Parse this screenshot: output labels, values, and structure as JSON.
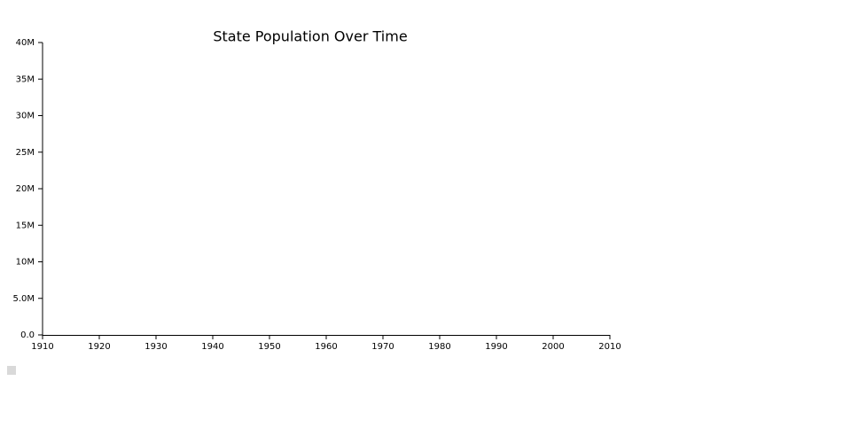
{
  "chart_data": {
    "type": "line",
    "title": "State Population Over Time",
    "xlim": [
      1910,
      2010
    ],
    "xticks": [
      1910,
      1920,
      1930,
      1940,
      1950,
      1960,
      1970,
      1980,
      1990,
      2000,
      2010
    ],
    "ylim": [
      0,
      40000000
    ],
    "yticks": [
      {
        "value": 0,
        "label": "0.0"
      },
      {
        "value": 5000000,
        "label": "5.0M"
      },
      {
        "value": 10000000,
        "label": "10M"
      },
      {
        "value": 15000000,
        "label": "15M"
      },
      {
        "value": 20000000,
        "label": "20M"
      },
      {
        "value": 25000000,
        "label": "25M"
      },
      {
        "value": 30000000,
        "label": "30M"
      },
      {
        "value": 35000000,
        "label": "35M"
      },
      {
        "value": 40000000,
        "label": "40M"
      }
    ]
  }
}
